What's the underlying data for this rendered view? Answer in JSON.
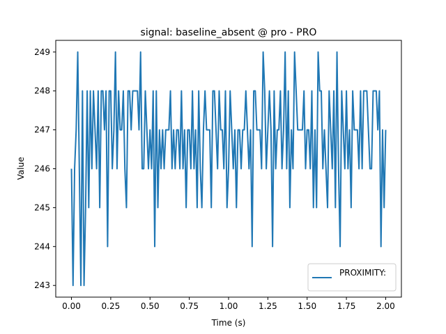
{
  "chart_data": {
    "type": "line",
    "title": "signal: baseline_absent @ pro - PRO",
    "xlabel": "Time (s)",
    "ylabel": "Value",
    "xlim": [
      -0.1,
      2.1
    ],
    "ylim": [
      242.7,
      249.3
    ],
    "x_ticks": [
      0.0,
      0.25,
      0.5,
      0.75,
      1.0,
      1.25,
      1.5,
      1.75,
      2.0
    ],
    "x_tick_labels": [
      "0.00",
      "0.25",
      "0.50",
      "0.75",
      "1.00",
      "1.25",
      "1.50",
      "1.75",
      "2.00"
    ],
    "y_ticks": [
      243,
      244,
      245,
      246,
      247,
      248,
      249
    ],
    "y_tick_labels": [
      "243",
      "244",
      "245",
      "246",
      "247",
      "248",
      "249"
    ],
    "grid": false,
    "legend_position": "lower-right",
    "colors": {
      "line": "#1f77b4"
    },
    "series": [
      {
        "name": "PROXIMITY:",
        "x": [
          0.0,
          0.01,
          0.02,
          0.03,
          0.04,
          0.05,
          0.06,
          0.07,
          0.08,
          0.09,
          0.1,
          0.11,
          0.12,
          0.13,
          0.14,
          0.15,
          0.16,
          0.17,
          0.18,
          0.19,
          0.2,
          0.21,
          0.22,
          0.23,
          0.24,
          0.25,
          0.26,
          0.27,
          0.28,
          0.29,
          0.3,
          0.31,
          0.32,
          0.33,
          0.34,
          0.35,
          0.36,
          0.37,
          0.38,
          0.39,
          0.4,
          0.41,
          0.42,
          0.43,
          0.44,
          0.45,
          0.46,
          0.47,
          0.48,
          0.49,
          0.5,
          0.51,
          0.52,
          0.53,
          0.54,
          0.55,
          0.56,
          0.57,
          0.58,
          0.59,
          0.6,
          0.61,
          0.62,
          0.63,
          0.64,
          0.65,
          0.66,
          0.67,
          0.68,
          0.69,
          0.7,
          0.71,
          0.72,
          0.73,
          0.74,
          0.75,
          0.76,
          0.77,
          0.78,
          0.79,
          0.8,
          0.81,
          0.82,
          0.83,
          0.84,
          0.85,
          0.86,
          0.87,
          0.88,
          0.89,
          0.9,
          0.91,
          0.92,
          0.93,
          0.94,
          0.95,
          0.96,
          0.97,
          0.98,
          0.99,
          1.0,
          1.01,
          1.02,
          1.03,
          1.04,
          1.05,
          1.06,
          1.07,
          1.08,
          1.09,
          1.1,
          1.11,
          1.12,
          1.13,
          1.14,
          1.15,
          1.16,
          1.17,
          1.18,
          1.19,
          1.2,
          1.21,
          1.22,
          1.23,
          1.24,
          1.25,
          1.26,
          1.27,
          1.28,
          1.29,
          1.3,
          1.31,
          1.32,
          1.33,
          1.34,
          1.35,
          1.36,
          1.37,
          1.38,
          1.39,
          1.4,
          1.41,
          1.42,
          1.43,
          1.44,
          1.45,
          1.46,
          1.47,
          1.48,
          1.49,
          1.5,
          1.51,
          1.52,
          1.53,
          1.54,
          1.55,
          1.56,
          1.57,
          1.58,
          1.59,
          1.6,
          1.61,
          1.62,
          1.63,
          1.64,
          1.65,
          1.66,
          1.67,
          1.68,
          1.69,
          1.7,
          1.71,
          1.72,
          1.73,
          1.74,
          1.75,
          1.76,
          1.77,
          1.78,
          1.79,
          1.8,
          1.81,
          1.82,
          1.83,
          1.84,
          1.85,
          1.86,
          1.87,
          1.88,
          1.89,
          1.9,
          1.91,
          1.92,
          1.93,
          1.94,
          1.95,
          1.96,
          1.97,
          1.98,
          1.99,
          2.0
        ],
        "values": [
          246,
          243,
          246,
          247,
          249,
          246,
          243,
          248,
          243,
          245,
          248,
          245,
          248,
          246,
          248,
          247,
          246,
          248,
          245,
          248,
          248,
          247,
          248,
          244,
          248,
          248,
          246,
          247,
          249,
          246,
          248,
          247,
          247,
          248,
          246,
          245,
          248,
          248,
          247,
          248,
          248,
          248,
          248,
          247,
          249,
          246,
          246,
          248,
          247,
          246,
          247,
          246,
          248,
          244,
          248,
          245,
          247,
          246,
          247,
          246,
          247,
          247,
          247,
          248,
          246,
          247,
          246,
          247,
          247,
          246,
          248,
          246,
          247,
          245,
          247,
          247,
          246,
          248,
          246,
          247,
          245,
          248,
          246,
          245,
          247,
          248,
          247,
          247,
          247,
          245,
          248,
          248,
          247,
          246,
          248,
          247,
          247,
          246,
          248,
          245,
          246,
          248,
          247,
          246,
          247,
          245,
          247,
          247,
          246,
          247,
          247,
          248,
          247,
          246,
          247,
          244,
          248,
          248,
          247,
          247,
          247,
          246,
          249,
          248,
          246,
          247,
          248,
          247,
          244,
          248,
          246,
          247,
          247,
          248,
          246,
          247,
          249,
          246,
          248,
          245,
          247,
          246,
          249,
          248,
          247,
          247,
          247,
          247,
          248,
          246,
          247,
          247,
          246,
          248,
          245,
          247,
          245,
          249,
          248,
          248,
          246,
          247,
          246,
          245,
          248,
          247,
          246,
          248,
          245,
          249,
          246,
          244,
          248,
          247,
          246,
          248,
          246,
          247,
          245,
          248,
          247,
          247,
          247,
          246,
          248,
          246,
          248,
          248,
          248,
          247,
          246,
          246,
          248,
          248,
          248,
          247,
          248,
          244,
          247,
          245,
          247
        ]
      }
    ]
  }
}
